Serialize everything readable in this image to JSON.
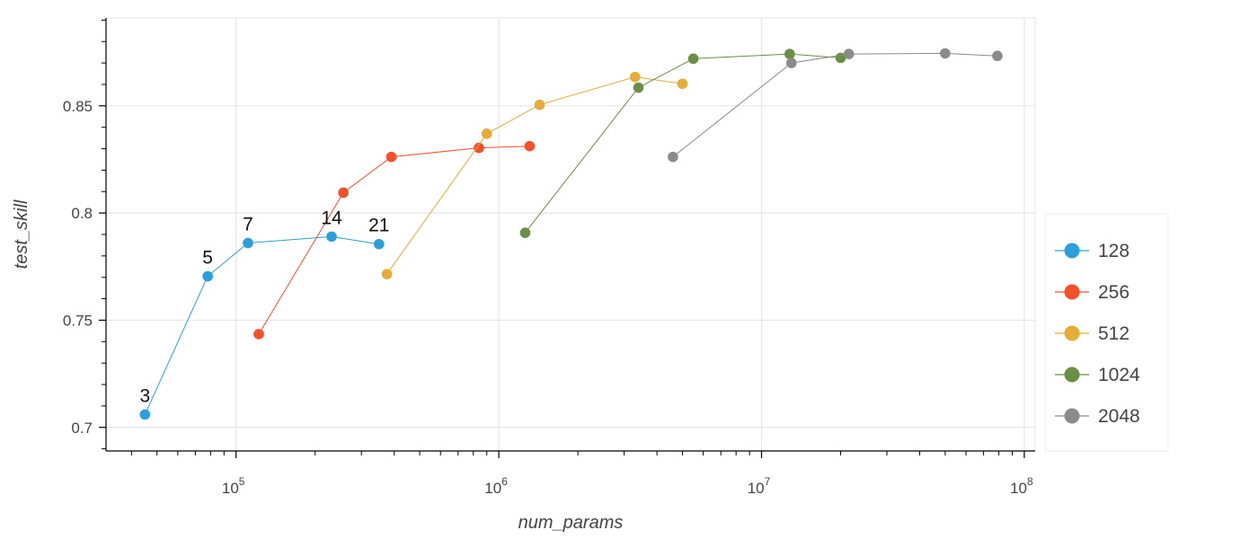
{
  "chart_data": {
    "type": "line",
    "xlabel": "num_params",
    "ylabel": "test_skill",
    "x_scale": "log",
    "xlim": [
      32000,
      110000000
    ],
    "ylim": [
      0.689,
      0.891
    ],
    "grid": true,
    "legend_position": "right",
    "x_ticks": [
      {
        "value": 100000,
        "base": "10",
        "exp": "5"
      },
      {
        "value": 1000000,
        "base": "10",
        "exp": "6"
      },
      {
        "value": 10000000,
        "base": "10",
        "exp": "7"
      },
      {
        "value": 100000000,
        "base": "10",
        "exp": "8"
      }
    ],
    "y_ticks": [
      {
        "value": 0.7,
        "label": "0.7"
      },
      {
        "value": 0.75,
        "label": "0.75"
      },
      {
        "value": 0.8,
        "label": "0.8"
      },
      {
        "value": 0.85,
        "label": "0.85"
      }
    ],
    "series": [
      {
        "name": "128",
        "color": "#2c9fda",
        "points": [
          [
            45000,
            0.706
          ],
          [
            78000,
            0.7705
          ],
          [
            111000,
            0.786
          ],
          [
            231000,
            0.789
          ],
          [
            350000,
            0.7855
          ]
        ]
      },
      {
        "name": "256",
        "color": "#f6502b",
        "points": [
          [
            122000,
            0.7435
          ],
          [
            256000,
            0.8095
          ],
          [
            390000,
            0.8262
          ],
          [
            840000,
            0.8304
          ],
          [
            1310000,
            0.8312
          ]
        ]
      },
      {
        "name": "512",
        "color": "#e7ab37",
        "points": [
          [
            375000,
            0.7715
          ],
          [
            900000,
            0.837
          ],
          [
            1430000,
            0.8505
          ],
          [
            3300000,
            0.8635
          ],
          [
            5000000,
            0.8603
          ]
        ]
      },
      {
        "name": "1024",
        "color": "#6a8e45",
        "points": [
          [
            1260000,
            0.7908
          ],
          [
            3400000,
            0.8585
          ],
          [
            5500000,
            0.872
          ],
          [
            12800000,
            0.8742
          ],
          [
            20000000,
            0.8724
          ]
        ]
      },
      {
        "name": "2048",
        "color": "#8b8b8b",
        "points": [
          [
            4600000,
            0.8262
          ],
          [
            13000000,
            0.87
          ],
          [
            21500000,
            0.8742
          ],
          [
            50000000,
            0.8745
          ],
          [
            79000000,
            0.8733
          ]
        ]
      }
    ],
    "annotations": [
      {
        "text": "3",
        "x": 45000,
        "y": 0.706
      },
      {
        "text": "5",
        "x": 78000,
        "y": 0.7705
      },
      {
        "text": "7",
        "x": 111000,
        "y": 0.786
      },
      {
        "text": "14",
        "x": 231000,
        "y": 0.789
      },
      {
        "text": "21",
        "x": 350000,
        "y": 0.7855
      }
    ]
  }
}
